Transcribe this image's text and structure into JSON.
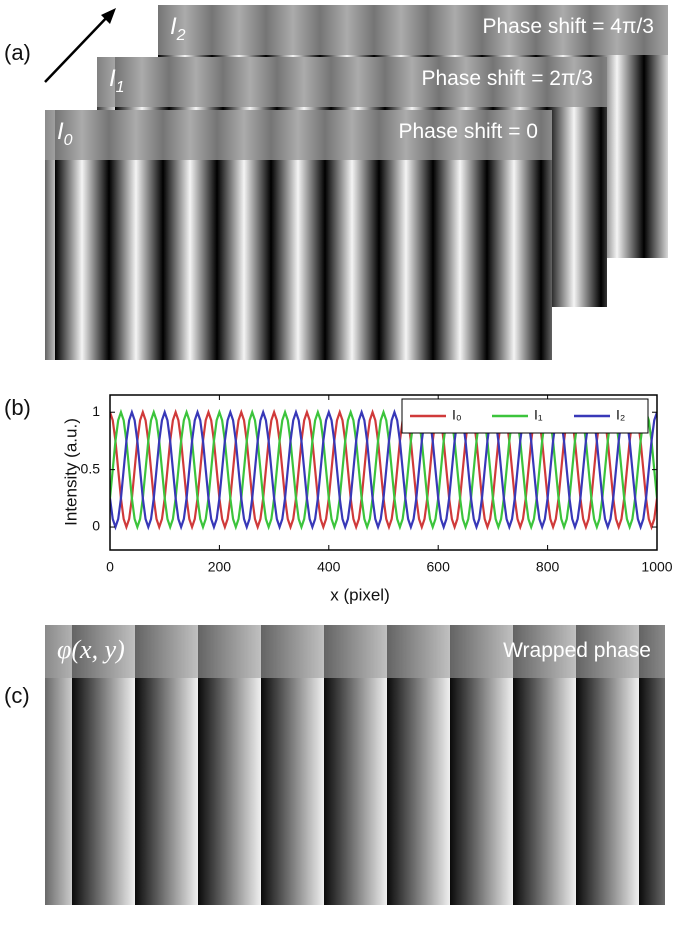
{
  "figure": {
    "panel_labels": [
      "(a)",
      "(b)",
      "(c)"
    ],
    "images": [
      {
        "label": "I",
        "subscript": "2",
        "caption": "Phase shift = 4π/3"
      },
      {
        "label": "I",
        "subscript": "1",
        "caption": "Phase shift = 2π/3"
      },
      {
        "label": "I",
        "subscript": "0",
        "caption": "Phase shift = 0"
      }
    ],
    "wrapped": {
      "label": "φ(x, y)",
      "caption": "Wrapped phase"
    }
  },
  "chart_data": {
    "type": "line",
    "xlabel": "x (pixel)",
    "ylabel": "Intensity (a.u.)",
    "xlim": [
      0,
      1000
    ],
    "ylim": [
      -0.2,
      1.15
    ],
    "xticks": [
      0,
      200,
      400,
      600,
      800,
      1000
    ],
    "yticks": [
      0,
      0.5,
      1
    ],
    "legend": "upper right",
    "x": [
      0,
      5,
      10,
      15,
      20,
      25,
      30,
      35,
      40,
      45,
      50,
      55,
      60,
      65,
      70,
      75,
      80,
      85,
      90,
      95,
      100,
      105,
      110,
      115,
      120,
      125,
      130,
      135,
      140,
      145,
      150,
      155,
      160,
      165,
      170,
      175,
      180,
      185,
      190,
      195,
      200,
      205,
      210,
      215,
      220,
      225,
      230,
      235,
      240,
      245,
      250,
      255,
      260,
      265,
      270,
      275,
      280,
      285,
      290,
      295,
      300,
      305,
      310,
      315,
      320,
      325,
      330,
      335,
      340,
      345,
      350,
      355,
      360,
      365,
      370,
      375,
      380,
      385,
      390,
      395,
      400,
      405,
      410,
      415,
      420,
      425,
      430,
      435,
      440,
      445,
      450,
      455,
      460,
      465,
      470,
      475,
      480,
      485,
      490,
      495,
      500,
      505,
      510,
      515,
      520,
      525,
      530,
      535,
      540,
      545,
      550,
      555,
      560,
      565,
      570,
      575,
      580,
      585,
      590,
      595,
      600,
      605,
      610,
      615,
      620,
      625,
      630,
      635,
      640,
      645,
      650,
      655,
      660,
      665,
      670,
      675,
      680,
      685,
      690,
      695,
      700,
      705,
      710,
      715,
      720,
      725,
      730,
      735,
      740,
      745,
      750,
      755,
      760,
      765,
      770,
      775,
      780,
      785,
      790,
      795,
      800,
      805,
      810,
      815,
      820,
      825,
      830,
      835,
      840,
      845,
      850,
      855,
      860,
      865,
      870,
      875,
      880,
      885,
      890,
      895,
      900,
      905,
      910,
      915,
      920,
      925,
      930,
      935,
      940,
      945,
      950,
      955,
      960,
      965,
      970,
      975,
      980,
      985,
      990,
      995,
      1000
    ],
    "series": [
      {
        "name": "I₀",
        "color": "#d03a3a",
        "values": [
          1,
          0.93,
          0.75,
          0.5,
          0.25,
          0.07,
          0,
          0.07,
          0.25,
          0.5,
          0.75,
          0.93,
          1,
          0.93,
          0.75,
          0.5,
          0.25,
          0.07,
          0,
          0.07,
          0.25,
          0.5,
          0.75,
          0.93,
          1,
          0.93,
          0.75,
          0.5,
          0.25,
          0.07,
          0,
          0.07,
          0.25,
          0.5,
          0.75,
          0.93,
          1,
          0.93,
          0.75,
          0.5,
          0.25,
          0.07,
          0,
          0.07,
          0.25,
          0.5,
          0.75,
          0.93,
          1,
          0.93,
          0.75,
          0.5,
          0.25,
          0.07,
          0,
          0.07,
          0.25,
          0.5,
          0.75,
          0.93,
          1,
          0.93,
          0.75,
          0.5,
          0.25,
          0.07,
          0,
          0.07,
          0.25,
          0.5,
          0.75,
          0.93,
          1,
          0.93,
          0.75,
          0.5,
          0.25,
          0.07,
          0,
          0.07,
          0.25,
          0.5,
          0.75,
          0.93,
          1,
          0.93,
          0.75,
          0.5,
          0.25,
          0.07,
          0,
          0.07,
          0.25,
          0.5,
          0.75,
          0.93,
          1,
          0.93,
          0.75,
          0.5,
          0.25,
          0.07,
          0,
          0.07,
          0.25,
          0.5,
          0.75,
          0.93,
          1,
          0.93,
          0.75,
          0.5,
          0.25,
          0.07,
          0,
          0.07,
          0.25,
          0.5,
          0.75,
          0.93,
          1,
          0.93,
          0.75,
          0.5,
          0.25,
          0.07,
          0,
          0.07,
          0.25,
          0.5,
          0.75,
          0.93,
          1,
          0.93,
          0.75,
          0.5,
          0.25,
          0.07,
          0,
          0.07,
          0.25,
          0.5,
          0.75,
          0.93,
          1,
          0.93,
          0.75,
          0.5,
          0.25,
          0.07,
          0,
          0.07,
          0.25,
          0.5,
          0.75,
          0.93,
          1,
          0.93,
          0.75,
          0.5,
          0.25,
          0.07,
          0,
          0.07,
          0.25,
          0.5,
          0.75,
          0.93,
          1,
          0.93,
          0.75,
          0.5,
          0.25,
          0.07,
          0,
          0.07,
          0.25,
          0.5,
          0.75,
          0.93,
          1,
          0.93,
          0.75,
          0.5,
          0.25,
          0.07,
          0,
          0.07,
          0.25,
          0.5,
          0.75,
          0.93,
          1,
          0.93,
          0.75,
          0.5,
          0.25,
          0.07,
          0,
          0.07,
          0.25
        ]
      },
      {
        "name": "I₁",
        "color": "#3cc43c",
        "values": [
          0.25,
          0.5,
          0.75,
          0.93,
          1,
          0.93,
          0.75,
          0.5,
          0.25,
          0.07,
          0,
          0.07,
          0.25,
          0.5,
          0.75,
          0.93,
          1,
          0.93,
          0.75,
          0.5,
          0.25,
          0.07,
          0,
          0.07,
          0.25,
          0.5,
          0.75,
          0.93,
          1,
          0.93,
          0.75,
          0.5,
          0.25,
          0.07,
          0,
          0.07,
          0.25,
          0.5,
          0.75,
          0.93,
          1,
          0.93,
          0.75,
          0.5,
          0.25,
          0.07,
          0,
          0.07,
          0.25,
          0.5,
          0.75,
          0.93,
          1,
          0.93,
          0.75,
          0.5,
          0.25,
          0.07,
          0,
          0.07,
          0.25,
          0.5,
          0.75,
          0.93,
          1,
          0.93,
          0.75,
          0.5,
          0.25,
          0.07,
          0,
          0.07,
          0.25,
          0.5,
          0.75,
          0.93,
          1,
          0.93,
          0.75,
          0.5,
          0.25,
          0.07,
          0,
          0.07,
          0.25,
          0.5,
          0.75,
          0.93,
          1,
          0.93,
          0.75,
          0.5,
          0.25,
          0.07,
          0,
          0.07,
          0.25,
          0.5,
          0.75,
          0.93,
          1,
          0.93,
          0.75,
          0.5,
          0.25,
          0.07,
          0,
          0.07,
          0.25,
          0.5,
          0.75,
          0.93,
          1,
          0.93,
          0.75,
          0.5,
          0.25,
          0.07,
          0,
          0.07,
          0.25,
          0.5,
          0.75,
          0.93,
          1,
          0.93,
          0.75,
          0.5,
          0.25,
          0.07,
          0,
          0.07,
          0.25,
          0.5,
          0.75,
          0.93,
          1,
          0.93,
          0.75,
          0.5,
          0.25,
          0.07,
          0,
          0.07,
          0.25,
          0.5,
          0.75,
          0.93,
          1,
          0.93,
          0.75,
          0.5,
          0.25,
          0.07,
          0,
          0.07,
          0.25,
          0.5,
          0.75,
          0.93,
          1,
          0.93,
          0.75,
          0.5,
          0.25,
          0.07,
          0,
          0.07,
          0.25,
          0.5,
          0.75,
          0.93,
          1,
          0.93,
          0.75,
          0.5,
          0.25,
          0.07,
          0,
          0.07,
          0.25,
          0.5,
          0.75,
          0.93,
          1,
          0.93,
          0.75,
          0.5,
          0.25,
          0.07,
          0,
          0.07,
          0.25,
          0.5,
          0.75,
          0.93,
          1,
          0.93,
          0.75,
          0.5,
          0.25
        ]
      },
      {
        "name": "I₂",
        "color": "#3838b8",
        "values": [
          0.25,
          0.07,
          0,
          0.07,
          0.25,
          0.5,
          0.75,
          0.93,
          1,
          0.93,
          0.75,
          0.5,
          0.25,
          0.07,
          0,
          0.07,
          0.25,
          0.5,
          0.75,
          0.93,
          1,
          0.93,
          0.75,
          0.5,
          0.25,
          0.07,
          0,
          0.07,
          0.25,
          0.5,
          0.75,
          0.93,
          1,
          0.93,
          0.75,
          0.5,
          0.25,
          0.07,
          0,
          0.07,
          0.25,
          0.5,
          0.75,
          0.93,
          1,
          0.93,
          0.75,
          0.5,
          0.25,
          0.07,
          0,
          0.07,
          0.25,
          0.5,
          0.75,
          0.93,
          1,
          0.93,
          0.75,
          0.5,
          0.25,
          0.07,
          0,
          0.07,
          0.25,
          0.5,
          0.75,
          0.93,
          1,
          0.93,
          0.75,
          0.5,
          0.25,
          0.07,
          0,
          0.07,
          0.25,
          0.5,
          0.75,
          0.93,
          1,
          0.93,
          0.75,
          0.5,
          0.25,
          0.07,
          0,
          0.07,
          0.25,
          0.5,
          0.75,
          0.93,
          1,
          0.93,
          0.75,
          0.5,
          0.25,
          0.07,
          0,
          0.07,
          0.25,
          0.5,
          0.75,
          0.93,
          1,
          0.93,
          0.75,
          0.5,
          0.25,
          0.07,
          0,
          0.07,
          0.25,
          0.5,
          0.75,
          0.93,
          1,
          0.93,
          0.75,
          0.5,
          0.25,
          0.07,
          0,
          0.07,
          0.25,
          0.5,
          0.75,
          0.93,
          1,
          0.93,
          0.75,
          0.5,
          0.25,
          0.07,
          0,
          0.07,
          0.25,
          0.5,
          0.75,
          0.93,
          1,
          0.93,
          0.75,
          0.5,
          0.25,
          0.07,
          0,
          0.07,
          0.25,
          0.5,
          0.75,
          0.93,
          1,
          0.93,
          0.75,
          0.5,
          0.25,
          0.07,
          0,
          0.07,
          0.25,
          0.5,
          0.75,
          0.93,
          1,
          0.93,
          0.75,
          0.5,
          0.25,
          0.07,
          0,
          0.07,
          0.25,
          0.5,
          0.75,
          0.93,
          1,
          0.93,
          0.75,
          0.5,
          0.25,
          0.07,
          0,
          0.07,
          0.25,
          0.5,
          0.75,
          0.93,
          1,
          0.93,
          0.75,
          0.5,
          0.25,
          0.07,
          0,
          0.07,
          0.25,
          0.5,
          0.75,
          0.93,
          1
        ]
      }
    ]
  }
}
